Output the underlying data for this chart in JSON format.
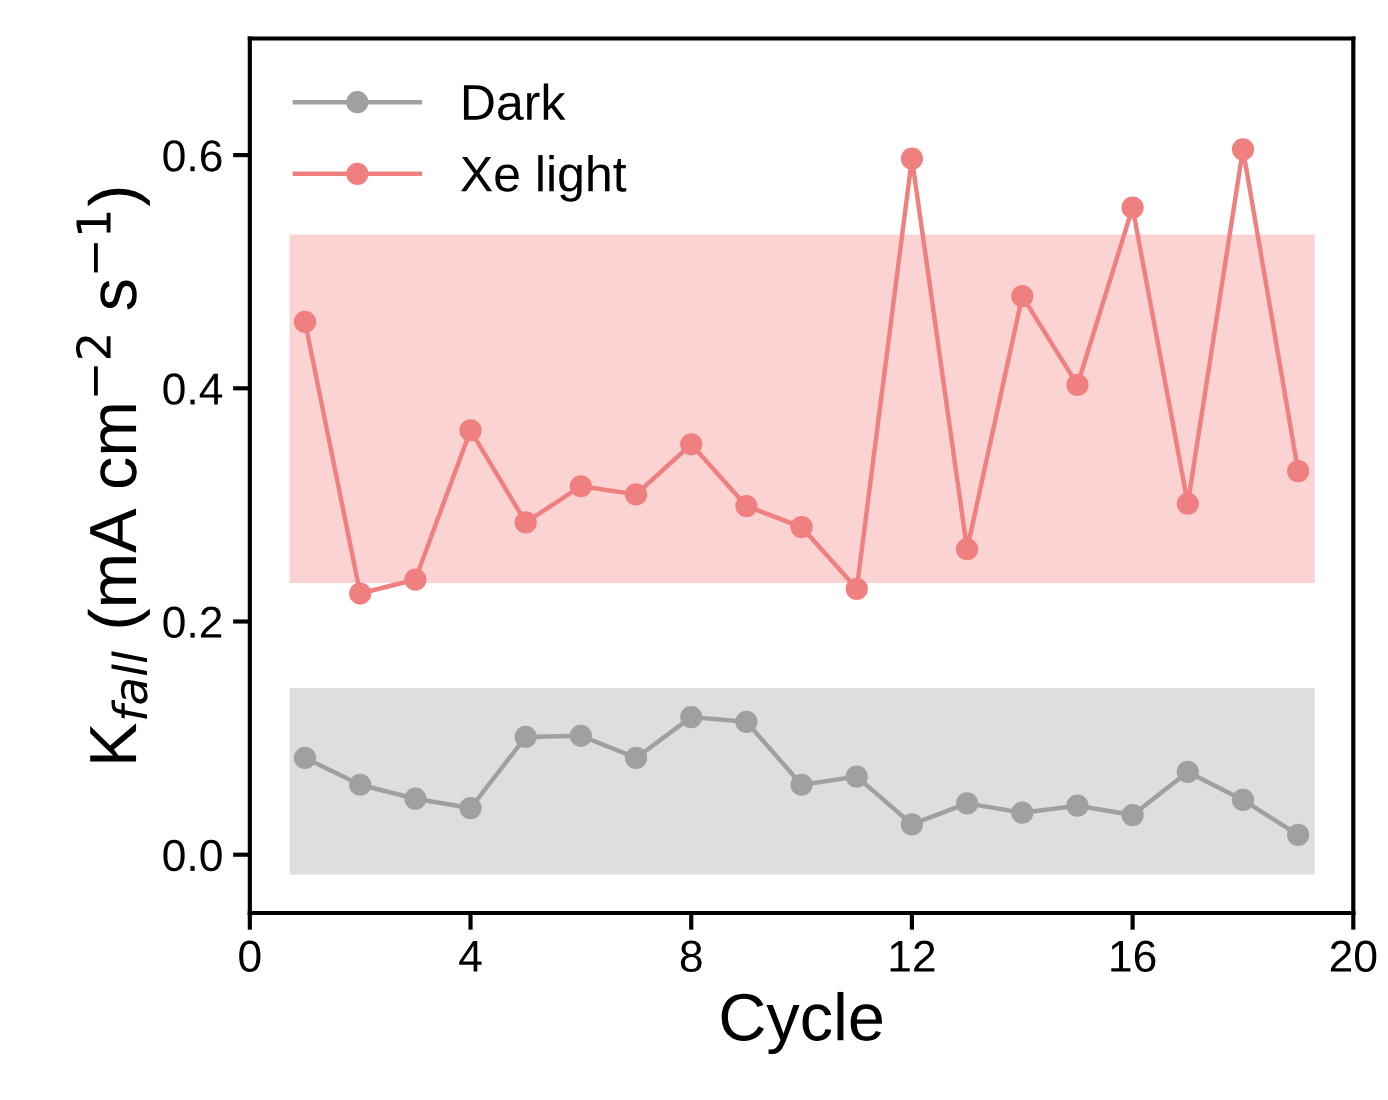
{
  "chart_data": {
    "type": "line",
    "xlabel": "Cycle",
    "ylabel": "K$_{fall}$ (mA cm$^{−2}$ s$^{−1}$)",
    "x": [
      1,
      2,
      3,
      4,
      5,
      6,
      7,
      8,
      9,
      10,
      11,
      12,
      13,
      14,
      15,
      16,
      17,
      18,
      19
    ],
    "series": [
      {
        "name": "Dark",
        "color": "#a0a0a0",
        "values": [
          0.083,
          0.06,
          0.048,
          0.04,
          0.101,
          0.102,
          0.083,
          0.118,
          0.114,
          0.06,
          0.067,
          0.026,
          0.044,
          0.036,
          0.042,
          0.034,
          0.071,
          0.047,
          0.017
        ]
      },
      {
        "name": "Xe light",
        "color": "#f08080",
        "values": [
          0.457,
          0.224,
          0.236,
          0.364,
          0.285,
          0.316,
          0.309,
          0.352,
          0.299,
          0.281,
          0.228,
          0.597,
          0.262,
          0.479,
          0.403,
          0.555,
          0.301,
          0.605,
          0.329
        ]
      }
    ],
    "bands": [
      {
        "axis": "y",
        "from": 0.233,
        "to": 0.532,
        "color": "#fcd3d3"
      },
      {
        "axis": "y",
        "from": -0.017,
        "to": 0.143,
        "color": "#dedede"
      }
    ],
    "xlim": [
      0,
      20
    ],
    "xticks": [
      0,
      4,
      8,
      12,
      16,
      20
    ],
    "ylim": [
      -0.05,
      0.7
    ],
    "yticks": [
      {
        "value": 0.0,
        "label": "0.0"
      },
      {
        "value": 0.2,
        "label": "0.2"
      },
      {
        "value": 0.4,
        "label": "0.4"
      },
      {
        "value": 0.6,
        "label": "0.6"
      }
    ],
    "marker": "circle",
    "legend": "top left",
    "grid": false
  }
}
